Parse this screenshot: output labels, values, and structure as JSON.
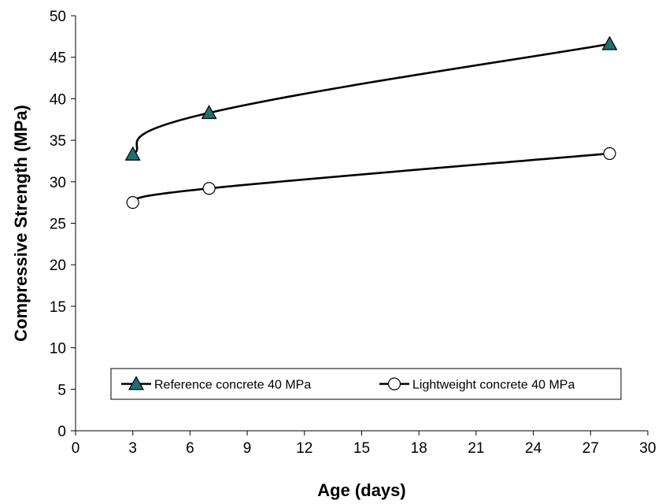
{
  "chart_data": {
    "type": "line",
    "title": "",
    "xlabel": "Age (days)",
    "ylabel": "Compressive Strength (MPa)",
    "xlim": [
      0,
      30
    ],
    "ylim": [
      0,
      50
    ],
    "x_ticks": [
      0,
      3,
      6,
      9,
      12,
      15,
      18,
      21,
      24,
      27,
      30
    ],
    "y_ticks": [
      0,
      5,
      10,
      15,
      20,
      25,
      30,
      35,
      40,
      45,
      50
    ],
    "grid": false,
    "legend_position": "lower-center",
    "series": [
      {
        "name": "Reference concrete 40 MPa",
        "marker": "triangle",
        "marker_color": "#1f6f6f",
        "x": [
          3,
          7,
          28
        ],
        "y": [
          33.3,
          38.3,
          46.6
        ]
      },
      {
        "name": "Lightweight concrete 40 MPa",
        "marker": "circle",
        "marker_color": "#ffffff",
        "x": [
          3,
          7,
          28
        ],
        "y": [
          27.5,
          29.2,
          33.4
        ]
      }
    ]
  }
}
